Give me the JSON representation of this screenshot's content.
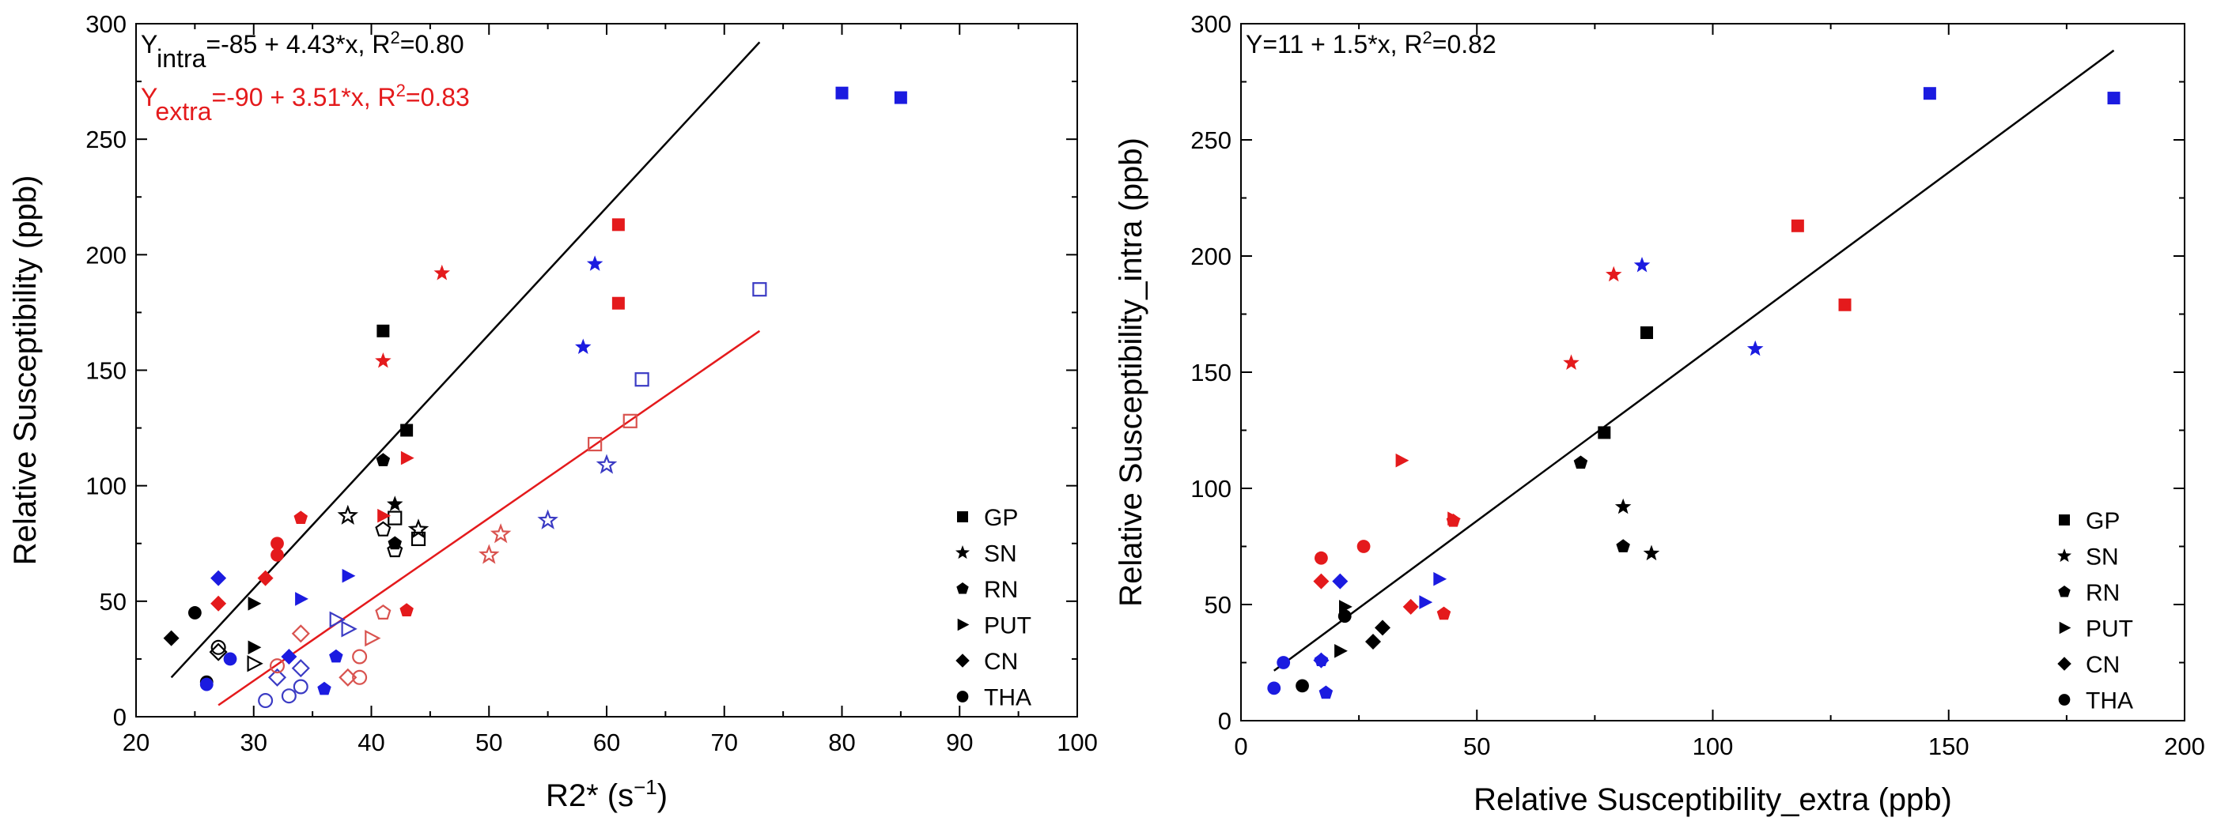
{
  "colors": {
    "black": "#000000",
    "red": "#e41a1c",
    "blue": "#1b1be0",
    "open_red": "#d9534f",
    "open_blue": "#3b3bc4"
  },
  "legend": [
    "GP",
    "SN",
    "RN",
    "PUT",
    "CN",
    "THA"
  ],
  "chart_data": [
    {
      "type": "scatter",
      "title": "",
      "xlabel": "R2* (s",
      "xlabel_sup": "−1",
      "xlabel_end": ")",
      "ylabel": "Relative Susceptibility (ppb)",
      "xlim": [
        20,
        100
      ],
      "ylim": [
        0,
        300
      ],
      "xticks": [
        20,
        30,
        40,
        50,
        60,
        70,
        80,
        90,
        100
      ],
      "yticks": [
        0,
        50,
        100,
        150,
        200,
        250,
        300
      ],
      "equations": [
        {
          "main": "Y",
          "sub": "intra",
          "rest": "=-85 + 4.43*x, R",
          "sup": "2",
          "tail": "=0.80",
          "color": "black"
        },
        {
          "main": "Y",
          "sub": "extra",
          "rest": "=-90 + 3.51*x, R",
          "sup": "2",
          "tail": "=0.83",
          "color": "red"
        }
      ],
      "fit_lines": [
        {
          "name": "intra fit",
          "color": "black",
          "x": [
            23,
            73
          ],
          "y": [
            17,
            292
          ]
        },
        {
          "name": "extra fit",
          "color": "red",
          "x": [
            27,
            73
          ],
          "y": [
            5,
            167
          ]
        }
      ],
      "points": [
        {
          "region": "GP",
          "color": "blue",
          "filled": true,
          "x": 80,
          "y": 270
        },
        {
          "region": "GP",
          "color": "blue",
          "filled": true,
          "x": 85,
          "y": 268
        },
        {
          "region": "GP",
          "color": "red",
          "filled": true,
          "x": 61,
          "y": 213
        },
        {
          "region": "GP",
          "color": "red",
          "filled": true,
          "x": 61,
          "y": 179
        },
        {
          "region": "GP",
          "color": "black",
          "filled": true,
          "x": 41,
          "y": 167
        },
        {
          "region": "GP",
          "color": "black",
          "filled": true,
          "x": 43,
          "y": 124
        },
        {
          "region": "GP",
          "color": "blue",
          "filled": false,
          "x": 73,
          "y": 185
        },
        {
          "region": "GP",
          "color": "blue",
          "filled": false,
          "x": 63,
          "y": 146
        },
        {
          "region": "GP",
          "color": "red",
          "filled": false,
          "x": 62,
          "y": 128
        },
        {
          "region": "GP",
          "color": "red",
          "filled": false,
          "x": 59,
          "y": 118
        },
        {
          "region": "GP",
          "color": "black",
          "filled": false,
          "x": 42,
          "y": 86
        },
        {
          "region": "GP",
          "color": "black",
          "filled": false,
          "x": 44,
          "y": 77
        },
        {
          "region": "SN",
          "color": "red",
          "filled": true,
          "x": 46,
          "y": 192
        },
        {
          "region": "SN",
          "color": "blue",
          "filled": true,
          "x": 59,
          "y": 196
        },
        {
          "region": "SN",
          "color": "blue",
          "filled": true,
          "x": 58,
          "y": 160
        },
        {
          "region": "SN",
          "color": "red",
          "filled": true,
          "x": 41,
          "y": 154
        },
        {
          "region": "SN",
          "color": "black",
          "filled": true,
          "x": 42,
          "y": 92
        },
        {
          "region": "SN",
          "color": "blue",
          "filled": false,
          "x": 60,
          "y": 109
        },
        {
          "region": "SN",
          "color": "black",
          "filled": false,
          "x": 38,
          "y": 87
        },
        {
          "region": "SN",
          "color": "blue",
          "filled": false,
          "x": 55,
          "y": 85
        },
        {
          "region": "SN",
          "color": "black",
          "filled": false,
          "x": 44,
          "y": 81
        },
        {
          "region": "SN",
          "color": "red",
          "filled": false,
          "x": 51,
          "y": 79
        },
        {
          "region": "SN",
          "color": "red",
          "filled": false,
          "x": 50,
          "y": 70
        },
        {
          "region": "RN",
          "color": "black",
          "filled": true,
          "x": 41,
          "y": 111
        },
        {
          "region": "RN",
          "color": "red",
          "filled": true,
          "x": 34,
          "y": 86
        },
        {
          "region": "RN",
          "color": "black",
          "filled": true,
          "x": 42,
          "y": 75
        },
        {
          "region": "RN",
          "color": "red",
          "filled": true,
          "x": 43,
          "y": 46
        },
        {
          "region": "RN",
          "color": "blue",
          "filled": true,
          "x": 37,
          "y": 26
        },
        {
          "region": "RN",
          "color": "blue",
          "filled": true,
          "x": 36,
          "y": 12
        },
        {
          "region": "RN",
          "color": "black",
          "filled": false,
          "x": 41,
          "y": 81
        },
        {
          "region": "RN",
          "color": "black",
          "filled": false,
          "x": 42,
          "y": 72
        },
        {
          "region": "RN",
          "color": "red",
          "filled": false,
          "x": 41,
          "y": 45
        },
        {
          "region": "PUT",
          "color": "red",
          "filled": true,
          "x": 43,
          "y": 112
        },
        {
          "region": "PUT",
          "color": "red",
          "filled": true,
          "x": 41,
          "y": 87
        },
        {
          "region": "PUT",
          "color": "blue",
          "filled": true,
          "x": 38,
          "y": 61
        },
        {
          "region": "PUT",
          "color": "blue",
          "filled": true,
          "x": 34,
          "y": 51
        },
        {
          "region": "PUT",
          "color": "black",
          "filled": true,
          "x": 30,
          "y": 49
        },
        {
          "region": "PUT",
          "color": "black",
          "filled": true,
          "x": 30,
          "y": 30
        },
        {
          "region": "PUT",
          "color": "blue",
          "filled": false,
          "x": 37,
          "y": 42
        },
        {
          "region": "PUT",
          "color": "blue",
          "filled": false,
          "x": 38,
          "y": 38
        },
        {
          "region": "PUT",
          "color": "red",
          "filled": false,
          "x": 40,
          "y": 34
        },
        {
          "region": "PUT",
          "color": "black",
          "filled": false,
          "x": 30,
          "y": 23
        },
        {
          "region": "CN",
          "color": "blue",
          "filled": true,
          "x": 27,
          "y": 60
        },
        {
          "region": "CN",
          "color": "red",
          "filled": true,
          "x": 31,
          "y": 60
        },
        {
          "region": "CN",
          "color": "red",
          "filled": true,
          "x": 27,
          "y": 49
        },
        {
          "region": "CN",
          "color": "black",
          "filled": true,
          "x": 23,
          "y": 34
        },
        {
          "region": "CN",
          "color": "blue",
          "filled": true,
          "x": 33,
          "y": 26
        },
        {
          "region": "CN",
          "color": "black",
          "filled": false,
          "x": 27,
          "y": 28
        },
        {
          "region": "CN",
          "color": "red",
          "filled": false,
          "x": 34,
          "y": 36
        },
        {
          "region": "CN",
          "color": "blue",
          "filled": false,
          "x": 34,
          "y": 21
        },
        {
          "region": "CN",
          "color": "blue",
          "filled": false,
          "x": 32,
          "y": 17
        },
        {
          "region": "CN",
          "color": "red",
          "filled": false,
          "x": 38,
          "y": 17
        },
        {
          "region": "THA",
          "color": "red",
          "filled": true,
          "x": 32,
          "y": 75
        },
        {
          "region": "THA",
          "color": "red",
          "filled": true,
          "x": 32,
          "y": 70
        },
        {
          "region": "THA",
          "color": "black",
          "filled": true,
          "x": 25,
          "y": 45
        },
        {
          "region": "THA",
          "color": "blue",
          "filled": true,
          "x": 28,
          "y": 25
        },
        {
          "region": "THA",
          "color": "black",
          "filled": true,
          "x": 26,
          "y": 15
        },
        {
          "region": "THA",
          "color": "blue",
          "filled": true,
          "x": 26,
          "y": 14
        },
        {
          "region": "THA",
          "color": "black",
          "filled": false,
          "x": 27,
          "y": 30
        },
        {
          "region": "THA",
          "color": "red",
          "filled": false,
          "x": 32,
          "y": 22
        },
        {
          "region": "THA",
          "color": "red",
          "filled": false,
          "x": 39,
          "y": 26
        },
        {
          "region": "THA",
          "color": "red",
          "filled": false,
          "x": 39,
          "y": 17
        },
        {
          "region": "THA",
          "color": "blue",
          "filled": false,
          "x": 34,
          "y": 13
        },
        {
          "region": "THA",
          "color": "blue",
          "filled": false,
          "x": 33,
          "y": 9
        },
        {
          "region": "THA",
          "color": "blue",
          "filled": false,
          "x": 31,
          "y": 7
        }
      ]
    },
    {
      "type": "scatter",
      "title": "",
      "xlabel": "Relative Susceptibility_extra (ppb)",
      "ylabel": "Relative Susceptibility_intra (ppb)",
      "xlim": [
        0,
        200
      ],
      "ylim": [
        0,
        300
      ],
      "xticks": [
        0,
        50,
        100,
        150,
        200
      ],
      "yticks": [
        0,
        50,
        100,
        150,
        200,
        250,
        300
      ],
      "equations": [
        {
          "main": "Y=11 + 1.5*x, R",
          "sup": "2",
          "tail": "=0.82",
          "color": "black"
        }
      ],
      "fit_lines": [
        {
          "name": "fit",
          "color": "black",
          "x": [
            7,
            185
          ],
          "y": [
            21.5,
            288.5
          ]
        }
      ],
      "points": [
        {
          "region": "GP",
          "color": "blue",
          "filled": true,
          "x": 146,
          "y": 270
        },
        {
          "region": "GP",
          "color": "blue",
          "filled": true,
          "x": 185,
          "y": 268
        },
        {
          "region": "GP",
          "color": "red",
          "filled": true,
          "x": 118,
          "y": 213
        },
        {
          "region": "GP",
          "color": "red",
          "filled": true,
          "x": 128,
          "y": 179
        },
        {
          "region": "GP",
          "color": "black",
          "filled": true,
          "x": 86,
          "y": 167
        },
        {
          "region": "GP",
          "color": "black",
          "filled": true,
          "x": 77,
          "y": 124
        },
        {
          "region": "SN",
          "color": "blue",
          "filled": true,
          "x": 85,
          "y": 196
        },
        {
          "region": "SN",
          "color": "red",
          "filled": true,
          "x": 79,
          "y": 192
        },
        {
          "region": "SN",
          "color": "blue",
          "filled": true,
          "x": 109,
          "y": 160
        },
        {
          "region": "SN",
          "color": "red",
          "filled": true,
          "x": 70,
          "y": 154
        },
        {
          "region": "SN",
          "color": "black",
          "filled": true,
          "x": 81,
          "y": 92
        },
        {
          "region": "SN",
          "color": "black",
          "filled": true,
          "x": 87,
          "y": 72
        },
        {
          "region": "RN",
          "color": "black",
          "filled": true,
          "x": 72,
          "y": 111
        },
        {
          "region": "RN",
          "color": "red",
          "filled": true,
          "x": 45,
          "y": 86
        },
        {
          "region": "RN",
          "color": "black",
          "filled": true,
          "x": 81,
          "y": 75
        },
        {
          "region": "RN",
          "color": "red",
          "filled": true,
          "x": 43,
          "y": 46
        },
        {
          "region": "RN",
          "color": "blue",
          "filled": true,
          "x": 17,
          "y": 26
        },
        {
          "region": "RN",
          "color": "blue",
          "filled": true,
          "x": 18,
          "y": 12
        },
        {
          "region": "PUT",
          "color": "red",
          "filled": true,
          "x": 34,
          "y": 112
        },
        {
          "region": "PUT",
          "color": "red",
          "filled": true,
          "x": 45,
          "y": 87
        },
        {
          "region": "PUT",
          "color": "blue",
          "filled": true,
          "x": 42,
          "y": 61
        },
        {
          "region": "PUT",
          "color": "blue",
          "filled": true,
          "x": 39,
          "y": 51
        },
        {
          "region": "PUT",
          "color": "black",
          "filled": true,
          "x": 22,
          "y": 49
        },
        {
          "region": "PUT",
          "color": "black",
          "filled": true,
          "x": 21,
          "y": 30
        },
        {
          "region": "CN",
          "color": "blue",
          "filled": true,
          "x": 21,
          "y": 60
        },
        {
          "region": "CN",
          "color": "red",
          "filled": true,
          "x": 17,
          "y": 60
        },
        {
          "region": "CN",
          "color": "red",
          "filled": true,
          "x": 36,
          "y": 49
        },
        {
          "region": "CN",
          "color": "black",
          "filled": true,
          "x": 30,
          "y": 40
        },
        {
          "region": "CN",
          "color": "black",
          "filled": true,
          "x": 28,
          "y": 34
        },
        {
          "region": "CN",
          "color": "blue",
          "filled": true,
          "x": 17,
          "y": 26
        },
        {
          "region": "THA",
          "color": "red",
          "filled": true,
          "x": 26,
          "y": 75
        },
        {
          "region": "THA",
          "color": "red",
          "filled": true,
          "x": 17,
          "y": 70
        },
        {
          "region": "THA",
          "color": "black",
          "filled": true,
          "x": 22,
          "y": 45
        },
        {
          "region": "THA",
          "color": "blue",
          "filled": true,
          "x": 9,
          "y": 25
        },
        {
          "region": "THA",
          "color": "black",
          "filled": true,
          "x": 13,
          "y": 15
        },
        {
          "region": "THA",
          "color": "blue",
          "filled": true,
          "x": 7,
          "y": 14
        }
      ]
    }
  ]
}
